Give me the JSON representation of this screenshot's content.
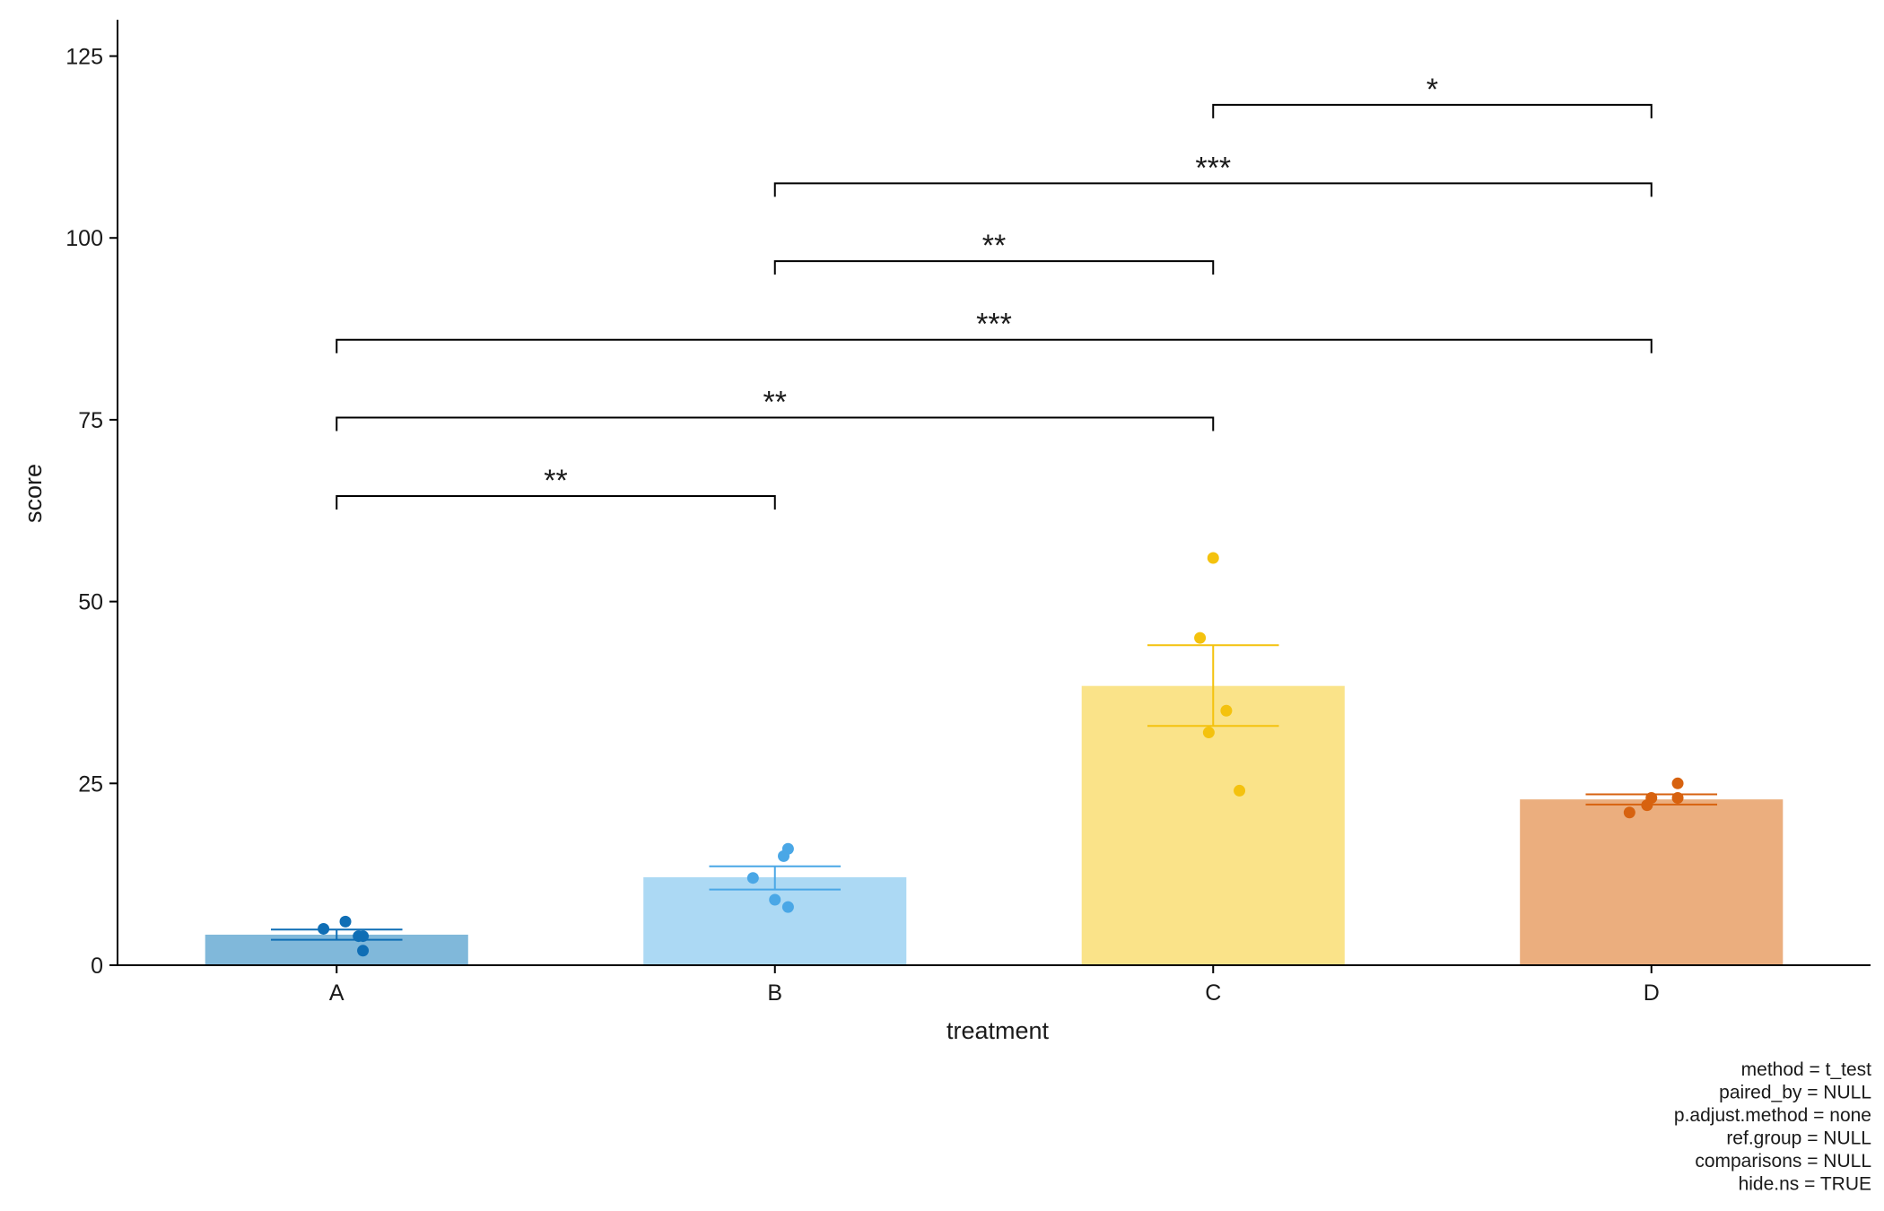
{
  "chart_data": {
    "type": "bar",
    "xlabel": "treatment",
    "ylabel": "score",
    "ylim": [
      0,
      130
    ],
    "yticks": [
      0,
      25,
      50,
      75,
      100,
      125
    ],
    "categories": [
      "A",
      "B",
      "C",
      "D"
    ],
    "values": [
      4.2,
      12.1,
      38.4,
      22.8
    ],
    "error_low": [
      3.5,
      10.4,
      32.9,
      22.1
    ],
    "error_high": [
      4.9,
      13.6,
      44.0,
      23.5
    ],
    "bar_colors": [
      "#80b8da",
      "#acd9f4",
      "#fae389",
      "#ebae7e"
    ],
    "point_colors": [
      "#0f6eb5",
      "#4aa7e6",
      "#f4c20e",
      "#d7620f"
    ],
    "points": [
      [
        {
          "x": 0.02,
          "y": 6
        },
        {
          "x": -0.03,
          "y": 5
        },
        {
          "x": 0.05,
          "y": 4
        },
        {
          "x": 0.06,
          "y": 4
        },
        {
          "x": 0.06,
          "y": 2
        }
      ],
      [
        {
          "x": 0.03,
          "y": 16
        },
        {
          "x": 0.02,
          "y": 15
        },
        {
          "x": -0.05,
          "y": 12
        },
        {
          "x": 0.0,
          "y": 9
        },
        {
          "x": 0.03,
          "y": 8
        }
      ],
      [
        {
          "x": 0.0,
          "y": 56
        },
        {
          "x": -0.03,
          "y": 45
        },
        {
          "x": 0.03,
          "y": 35
        },
        {
          "x": -0.01,
          "y": 32
        },
        {
          "x": 0.06,
          "y": 24
        }
      ],
      [
        {
          "x": 0.06,
          "y": 25
        },
        {
          "x": 0.0,
          "y": 23
        },
        {
          "x": 0.06,
          "y": 23
        },
        {
          "x": -0.01,
          "y": 22
        },
        {
          "x": -0.05,
          "y": 21
        }
      ]
    ],
    "comparisons": [
      {
        "from": "A",
        "to": "B",
        "y": 64.5,
        "label": "**"
      },
      {
        "from": "A",
        "to": "C",
        "y": 75.3,
        "label": "**"
      },
      {
        "from": "A",
        "to": "D",
        "y": 86.0,
        "label": "***"
      },
      {
        "from": "B",
        "to": "C",
        "y": 96.8,
        "label": "**"
      },
      {
        "from": "B",
        "to": "D",
        "y": 107.5,
        "label": "***"
      },
      {
        "from": "C",
        "to": "D",
        "y": 118.3,
        "label": "*"
      }
    ],
    "caption": [
      "method = t_test",
      "paired_by = NULL",
      "p.adjust.method = none",
      "ref.group = NULL",
      "comparisons = NULL",
      "hide.ns = TRUE"
    ]
  }
}
